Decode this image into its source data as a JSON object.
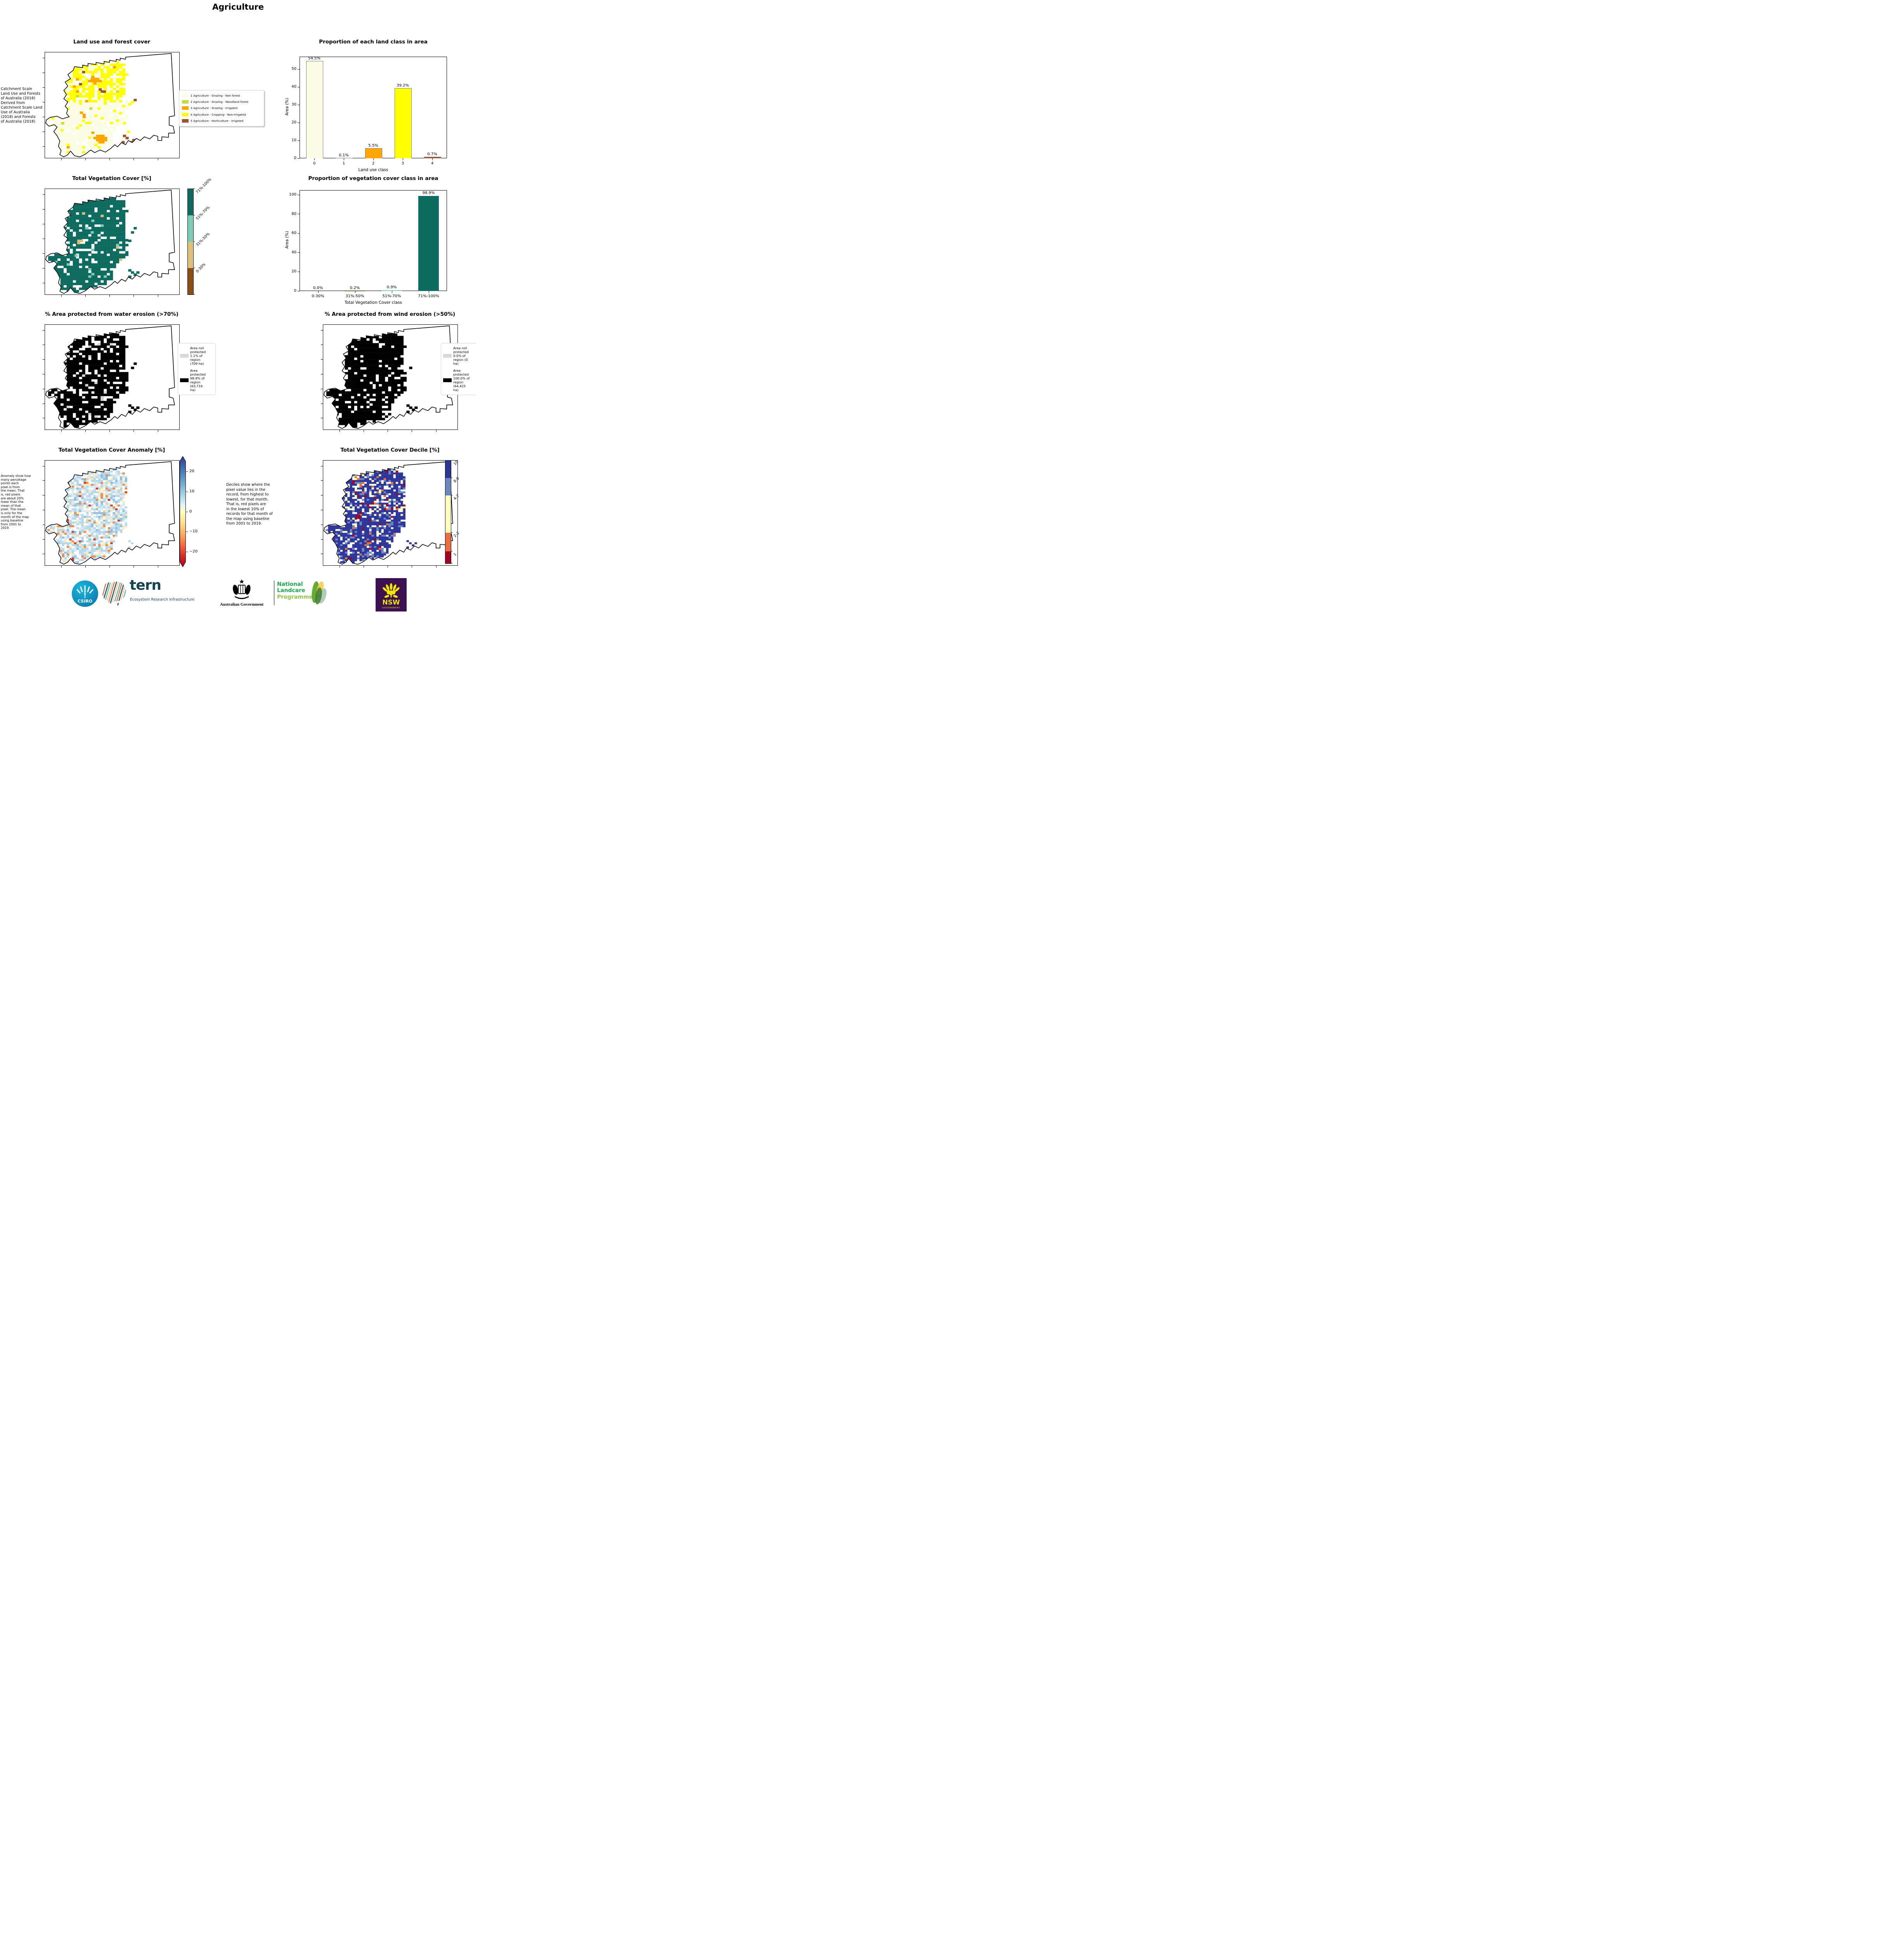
{
  "page_title": "Agriculture",
  "panels": {
    "land_use": {
      "title": "Land use and forest cover",
      "side_note": " Catchment Scale\nLand Use and Forests\nof Australia (2018)\nDerived from\nCatchment Scale Land\nUse of Australia\n(2018) and Forests\nof Australia (2018)",
      "legend": [
        {
          "label": "1 Agriculture - Grazing - Non forest",
          "color": "#fbfce4"
        },
        {
          "label": "2 Agriculture - Grazing - Woodland forest",
          "color": "#c8d94e"
        },
        {
          "label": "3 Agriculture - Grazing - Irrigated",
          "color": "#ffa500"
        },
        {
          "label": "4 Agriculture - Cropping - Non-irrigated",
          "color": "#ffff00"
        },
        {
          "label": "5 Agriculture - Horticulture - Irrigated",
          "color": "#a0522d"
        }
      ]
    },
    "veg_cover": {
      "title": "Total Vegetation Cover [%]",
      "colorbar": [
        {
          "label": "71%-100%",
          "color": "#0d6b60",
          "h": 68
        },
        {
          "label": "51%-70%",
          "color": "#7ecbb6",
          "h": 68
        },
        {
          "label": "31%-50%",
          "color": "#ddc07c",
          "h": 68
        },
        {
          "label": "0-30%",
          "color": "#8a4d13",
          "h": 68
        }
      ]
    },
    "water_erosion": {
      "title": "% Area protected from water erosion (>70%)",
      "legend": [
        {
          "label": "Area not\nprotected\n1.1% of\nregion\n(709 ha)",
          "color": "#d9d9d9"
        },
        {
          "label": "Area\nprotected\n98.9% of\nregion\n(63,716\nha)",
          "color": "#000000"
        }
      ]
    },
    "wind_erosion": {
      "title": "% Area protected from wind erosion (>50%)",
      "legend": [
        {
          "label": "Area not\nprotected\n0.0% of\nregion (0\nha)",
          "color": "#d9d9d9"
        },
        {
          "label": "Area\nprotected\n100.0% of\nregion\n(64,425\nha)",
          "color": "#000000"
        }
      ]
    },
    "anomaly": {
      "title": "Total Vegetation Cover Anomaly [%]",
      "note": "Anomaly show how\nmany percetage\npoints each\npixel is from\nthe mean. That\nis, red pixels\nare about 20%\nlower than the\nmean of that\npixel. The mean\nis only for the\nmonth of the map\nusing baseline\nfrom 2001 to\n2019.",
      "colorbar_ticks": [
        "20",
        "10",
        "0",
        "−10",
        "−20"
      ]
    },
    "decile": {
      "title": "Total Vegetation Cover Decile [%]",
      "note": "Deciles show where the\npixel value lies in the\nrecord, from highest to\nlowest, for that month.\nThat is, red pixels are\nin the lowest 10% of\nrecords for that month of\nthe map using baseline\nfrom 2001 to 2019.",
      "colorbar": [
        {
          "label": "10",
          "color": "#2c3592",
          "h": 45
        },
        {
          "label": "8-9",
          "color": "#6d85c1",
          "h": 45
        },
        {
          "label": "4-7",
          "color": "#fefebe",
          "h": 96
        },
        {
          "label": "2-3",
          "color": "#e9703e",
          "h": 48
        },
        {
          "label": "1",
          "color": "#a50026",
          "h": 31
        }
      ]
    }
  },
  "chart_data": [
    {
      "type": "bar",
      "title": "Proportion of each land class in area",
      "categories": [
        "0",
        "1",
        "2",
        "3",
        "4"
      ],
      "values": [
        54.5,
        0.1,
        5.5,
        39.2,
        0.7
      ],
      "value_labels": [
        "54.5%",
        "0.1%",
        "5.5%",
        "39.2%",
        "0.7%"
      ],
      "colors": [
        "#fbfce4",
        "#c8d94e",
        "#ffa500",
        "#ffff00",
        "#a0522d"
      ],
      "bar_edge": "#808080",
      "xlabel": "Land use class",
      "ylabel": "Area (%)",
      "ylim": [
        0,
        57
      ],
      "yticks": [
        0,
        10,
        20,
        30,
        40,
        50
      ],
      "legend_position": "none",
      "grid": false
    },
    {
      "type": "bar",
      "title": "Proportion of vegetation cover class in area",
      "categories": [
        "0-30%",
        "31%-50%",
        "51%-70%",
        "71%-100%"
      ],
      "values": [
        0.0,
        0.2,
        0.9,
        98.9
      ],
      "value_labels": [
        "0.0%",
        "0.2%",
        "0.9%",
        "98.9%"
      ],
      "colors": [
        "#8a4d13",
        "#ddc07c",
        "#7ecbb6",
        "#0d6b60"
      ],
      "bar_edge": "",
      "xlabel": "Total Vegetation Cover class",
      "ylabel": "Area (%)",
      "ylim": [
        0,
        105
      ],
      "yticks": [
        0,
        20,
        40,
        60,
        80,
        100
      ],
      "legend_position": "none",
      "grid": false
    }
  ],
  "maps": {
    "landuse": {
      "cell": 2.3,
      "seed": 11,
      "palettes": [
        {
          "max_y": 46,
          "colors": [
            "#ffff00",
            "#fbfce4",
            "#ffffff",
            "#ffa500",
            "#a0522d",
            "#c8d94e"
          ],
          "weights": [
            0.58,
            0.27,
            0.1,
            0.03,
            0.01,
            0.005
          ]
        },
        {
          "max_y": 101,
          "colors": [
            "#fbfce4",
            "#ffffff",
            "#ffff00",
            "#ffa500",
            "#a0522d",
            "#c8d94e"
          ],
          "weights": [
            0.77,
            0.13,
            0.075,
            0.012,
            0.004,
            0.004
          ]
        }
      ],
      "extras": [
        {
          "color": "#ffa500",
          "cells": [
            [
              34,
              24
            ],
            [
              36,
              24
            ],
            [
              38,
              24
            ],
            [
              32,
              26
            ],
            [
              34,
              26
            ],
            [
              36,
              26
            ],
            [
              38,
              26
            ],
            [
              40,
              26
            ],
            [
              36,
              28
            ],
            [
              38,
              78
            ],
            [
              40,
              78
            ],
            [
              42,
              78
            ],
            [
              36,
              80
            ],
            [
              38,
              80
            ],
            [
              40,
              80
            ],
            [
              42,
              80
            ],
            [
              44,
              80
            ],
            [
              38,
              82
            ],
            [
              40,
              82
            ],
            [
              42,
              82
            ],
            [
              44,
              82
            ],
            [
              40,
              84
            ],
            [
              42,
              84
            ],
            [
              26,
              56
            ],
            [
              28,
              58
            ],
            [
              28,
              60
            ]
          ]
        },
        {
          "color": "#a0522d",
          "cells": [
            [
              58,
              78
            ],
            [
              60,
              80
            ],
            [
              63,
              84
            ],
            [
              65,
              82
            ],
            [
              57,
              84
            ],
            [
              61,
              86
            ],
            [
              40,
              34
            ],
            [
              43,
              36
            ],
            [
              66,
              44
            ]
          ]
        },
        {
          "color": "#ffff00",
          "cells": [
            [
              62,
              48
            ],
            [
              64,
              46
            ],
            [
              58,
              66
            ],
            [
              61,
              74
            ]
          ]
        },
        {
          "color": "#c8d94e",
          "cells": [
            [
              12,
              66
            ],
            [
              33,
              52
            ]
          ]
        }
      ]
    },
    "vegcover": {
      "cell": 2.3,
      "seed": 22,
      "palettes": [
        {
          "max_y": 101,
          "colors": [
            "#0d6b60",
            "#ffffff",
            "#7ecbb6",
            "#ddc07c"
          ],
          "weights": [
            0.82,
            0.16,
            0.013,
            0.005
          ]
        }
      ],
      "extras": [
        {
          "color": "#0d6b60",
          "cells": [
            [
              62,
              76
            ],
            [
              64,
              78
            ],
            [
              66,
              80
            ],
            [
              62,
              82
            ],
            [
              68,
              78
            ],
            [
              64,
              40
            ],
            [
              66,
              36
            ],
            [
              62,
              48
            ]
          ]
        },
        {
          "color": "#ddc07c",
          "cells": [
            [
              24,
              48
            ],
            [
              26,
              48
            ],
            [
              24,
              50
            ]
          ]
        },
        {
          "color": "#7ecbb6",
          "cells": [
            [
              30,
              36
            ],
            [
              34,
              40
            ],
            [
              22,
              62
            ]
          ]
        }
      ]
    },
    "water": {
      "cell": 2.3,
      "seed": 33,
      "palettes": [
        {
          "max_y": 101,
          "colors": [
            "#000000",
            "#ffffff",
            "#d3d3d3"
          ],
          "weights": [
            0.83,
            0.155,
            0.013
          ]
        }
      ],
      "extras": [
        {
          "color": "#000000",
          "cells": [
            [
              62,
              76
            ],
            [
              64,
              78
            ],
            [
              66,
              80
            ],
            [
              62,
              82
            ],
            [
              68,
              78
            ],
            [
              64,
              40
            ],
            [
              66,
              36
            ]
          ]
        }
      ]
    },
    "wind": {
      "cell": 2.3,
      "seed": 44,
      "palettes": [
        {
          "max_y": 101,
          "colors": [
            "#000000",
            "#ffffff"
          ],
          "weights": [
            0.86,
            0.14
          ]
        }
      ],
      "extras": [
        {
          "color": "#000000",
          "cells": [
            [
              62,
              76
            ],
            [
              64,
              78
            ],
            [
              66,
              80
            ],
            [
              62,
              82
            ],
            [
              68,
              78
            ],
            [
              64,
              40
            ]
          ]
        }
      ]
    },
    "anomaly": {
      "cell": 1.8,
      "seed": 55,
      "palettes": [
        {
          "max_y": 101,
          "colors": [
            "#b8d8ea",
            "#d9eaf3",
            "#ffffff",
            "#8fc0dc",
            "#feeab0",
            "#ef8a4c",
            "#cf3f2d"
          ],
          "weights": [
            0.3,
            0.22,
            0.22,
            0.08,
            0.1,
            0.05,
            0.015
          ]
        }
      ],
      "extras": [
        {
          "color": "#cf3f2d",
          "cells": [
            [
              16,
              56
            ],
            [
              16,
              58
            ]
          ]
        },
        {
          "color": "#b8d8ea",
          "cells": [
            [
              62,
              76
            ],
            [
              64,
              78
            ],
            [
              62,
              82
            ]
          ]
        }
      ]
    },
    "decile": {
      "cell": 1.8,
      "seed": 66,
      "palettes": [
        {
          "max_y": 46,
          "colors": [
            "#2e3799",
            "#6d85c1",
            "#ffffff",
            "#fefec0",
            "#e9703e",
            "#a50026"
          ],
          "weights": [
            0.52,
            0.12,
            0.12,
            0.14,
            0.05,
            0.04
          ]
        },
        {
          "max_y": 101,
          "colors": [
            "#2e3799",
            "#6d85c1",
            "#ffffff",
            "#fefec0",
            "#e9703e",
            "#a50026"
          ],
          "weights": [
            0.66,
            0.14,
            0.1,
            0.06,
            0.022,
            0.015
          ]
        }
      ],
      "extras": [
        {
          "color": "#a50026",
          "cells": [
            [
              24,
              52
            ],
            [
              26,
              52
            ],
            [
              24,
              54
            ],
            [
              26,
              54
            ],
            [
              28,
              40
            ]
          ]
        },
        {
          "color": "#2e3799",
          "cells": [
            [
              62,
              76
            ],
            [
              64,
              78
            ],
            [
              66,
              80
            ],
            [
              62,
              82
            ],
            [
              68,
              78
            ]
          ]
        }
      ]
    }
  },
  "footer": {
    "csiro_label": "CSIRO",
    "tern_label": "tern",
    "tern_sub": "Ecosystem Research Infrastructure",
    "aus_gov": "Australian Government",
    "landcare_line1": "National",
    "landcare_line2": "Landcare",
    "landcare_line3": "Programme",
    "nsw_label": "NSW",
    "nsw_sub": "GOVERNMENT",
    "colors": {
      "csiro_blue": "#0f9bc9",
      "tern_teal": "#17424f",
      "landcare_green": "#18a94b",
      "landcare_light": "#8dc63f",
      "nsw_purple": "#3b1152",
      "nsw_yellow": "#f2e500"
    }
  }
}
